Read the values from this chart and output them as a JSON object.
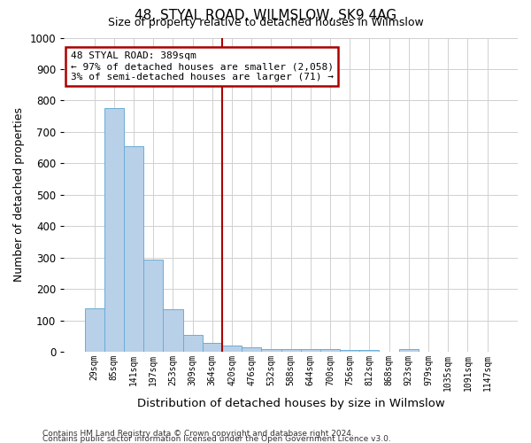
{
  "title1": "48, STYAL ROAD, WILMSLOW, SK9 4AG",
  "title2": "Size of property relative to detached houses in Wilmslow",
  "xlabel": "Distribution of detached houses by size in Wilmslow",
  "ylabel": "Number of detached properties",
  "categories": [
    "29sqm",
    "85sqm",
    "141sqm",
    "197sqm",
    "253sqm",
    "309sqm",
    "364sqm",
    "420sqm",
    "476sqm",
    "532sqm",
    "588sqm",
    "644sqm",
    "700sqm",
    "756sqm",
    "812sqm",
    "868sqm",
    "923sqm",
    "979sqm",
    "1035sqm",
    "1091sqm",
    "1147sqm"
  ],
  "values": [
    140,
    775,
    655,
    295,
    135,
    55,
    30,
    20,
    15,
    10,
    10,
    8,
    8,
    7,
    6,
    0,
    10,
    0,
    0,
    0,
    0
  ],
  "bar_color": "#b8d0e8",
  "bar_edge_color": "#6aaed6",
  "vline_x": 6.5,
  "vline_color": "#aa0000",
  "annotation_text": "48 STYAL ROAD: 389sqm\n← 97% of detached houses are smaller (2,058)\n3% of semi-detached houses are larger (71) →",
  "annotation_box_color": "#ffffff",
  "annotation_box_edge_color": "#aa0000",
  "ylim": [
    0,
    1000
  ],
  "yticks": [
    0,
    100,
    200,
    300,
    400,
    500,
    600,
    700,
    800,
    900,
    1000
  ],
  "footnote1": "Contains HM Land Registry data © Crown copyright and database right 2024.",
  "footnote2": "Contains public sector information licensed under the Open Government Licence v3.0.",
  "background_color": "#ffffff",
  "grid_color": "#d0d0d0"
}
